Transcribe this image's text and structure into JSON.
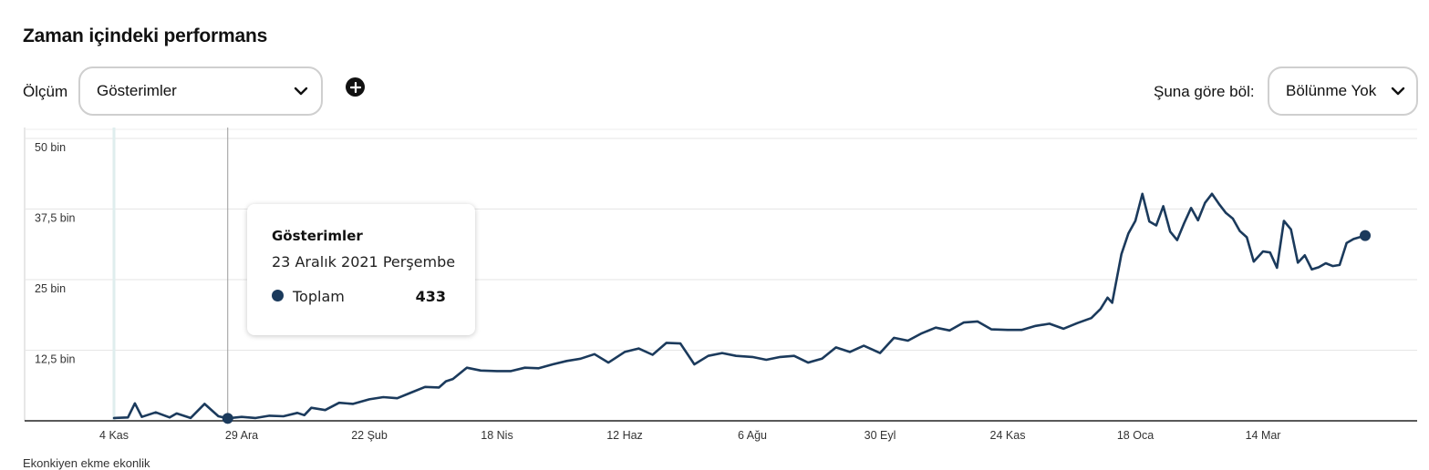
{
  "header": {
    "title": "Zaman içindeki performans"
  },
  "controls": {
    "metric_label": "Ölçüm",
    "metric_value": "Gösterimler",
    "add_icon": "plus-circle-icon",
    "split_label": "Şuna göre böl:",
    "split_value": "Bölünme Yok"
  },
  "tooltip": {
    "title": "Gösterimler",
    "date": "23 Aralık 2021 Perşembe",
    "series_name": "Toplam",
    "value": "433"
  },
  "footnote": "Ekonkiyen ekme ekonlik",
  "colors": {
    "line": "#1b3a5c",
    "grid": "#e6e6e6",
    "axis": "#222222",
    "accent_band": "#dfeeee"
  },
  "chart_data": {
    "type": "line",
    "title": "",
    "xlabel": "",
    "ylabel": "",
    "ylim": [
      0,
      50000
    ],
    "y_ticks": [
      0,
      12500,
      25000,
      37500,
      50000
    ],
    "y_tick_labels": [
      "",
      "12,5 bin",
      "25 bin",
      "37,5 bin",
      "50 bin"
    ],
    "x_range": [
      "2021-11-04",
      "2023-04-27"
    ],
    "x_ticks": [
      "2021-11-04",
      "2021-12-29",
      "2022-02-22",
      "2022-04-18",
      "2022-06-12",
      "2022-08-06",
      "2022-09-30",
      "2022-11-24",
      "2023-01-18",
      "2023-03-14"
    ],
    "x_tick_labels": [
      "4 Kas",
      "29 Ara",
      "22 Şub",
      "18 Nis",
      "12 Haz",
      "6 Ağu",
      "30 Eyl",
      "24 Kas",
      "18 Oca",
      "14 Mar"
    ],
    "grid": true,
    "legend": "none",
    "highlight_point": {
      "x": "2021-12-23",
      "y": 433
    },
    "series": [
      {
        "name": "Toplam",
        "x": [
          "2021-11-04",
          "2021-11-10",
          "2021-11-13",
          "2021-11-16",
          "2021-11-22",
          "2021-11-28",
          "2021-12-01",
          "2021-12-07",
          "2021-12-13",
          "2021-12-19",
          "2021-12-23",
          "2021-12-29",
          "2022-01-04",
          "2022-01-10",
          "2022-01-16",
          "2022-01-22",
          "2022-01-25",
          "2022-01-28",
          "2022-02-03",
          "2022-02-09",
          "2022-02-15",
          "2022-02-22",
          "2022-02-28",
          "2022-03-06",
          "2022-03-12",
          "2022-03-18",
          "2022-03-24",
          "2022-03-27",
          "2022-03-30",
          "2022-04-05",
          "2022-04-11",
          "2022-04-18",
          "2022-04-24",
          "2022-04-30",
          "2022-05-06",
          "2022-05-12",
          "2022-05-18",
          "2022-05-24",
          "2022-05-30",
          "2022-06-05",
          "2022-06-12",
          "2022-06-18",
          "2022-06-24",
          "2022-06-30",
          "2022-07-06",
          "2022-07-12",
          "2022-07-18",
          "2022-07-24",
          "2022-07-30",
          "2022-08-06",
          "2022-08-12",
          "2022-08-18",
          "2022-08-24",
          "2022-08-30",
          "2022-09-05",
          "2022-09-11",
          "2022-09-17",
          "2022-09-23",
          "2022-09-30",
          "2022-10-06",
          "2022-10-12",
          "2022-10-18",
          "2022-10-24",
          "2022-10-30",
          "2022-11-05",
          "2022-11-11",
          "2022-11-17",
          "2022-11-24",
          "2022-11-30",
          "2022-12-06",
          "2022-12-12",
          "2022-12-18",
          "2022-12-24",
          "2022-12-30",
          "2023-01-03",
          "2023-01-06",
          "2023-01-08",
          "2023-01-12",
          "2023-01-15",
          "2023-01-18",
          "2023-01-21",
          "2023-01-24",
          "2023-01-27",
          "2023-01-30",
          "2023-02-02",
          "2023-02-05",
          "2023-02-08",
          "2023-02-11",
          "2023-02-14",
          "2023-02-17",
          "2023-02-20",
          "2023-02-23",
          "2023-02-26",
          "2023-03-01",
          "2023-03-04",
          "2023-03-07",
          "2023-03-10",
          "2023-03-14",
          "2023-03-17",
          "2023-03-20",
          "2023-03-23",
          "2023-03-26",
          "2023-03-29",
          "2023-04-01",
          "2023-04-04",
          "2023-04-07",
          "2023-04-10",
          "2023-04-13",
          "2023-04-16",
          "2023-04-19",
          "2023-04-22",
          "2023-04-27"
        ],
        "values": [
          500,
          600,
          3100,
          700,
          1500,
          600,
          1300,
          500,
          3000,
          800,
          433,
          700,
          500,
          900,
          800,
          1400,
          1000,
          2300,
          1900,
          3200,
          3000,
          3800,
          4200,
          4000,
          5000,
          6000,
          5900,
          7000,
          7400,
          9400,
          8900,
          8800,
          8800,
          9400,
          9300,
          10000,
          10600,
          11000,
          11800,
          10300,
          12200,
          12800,
          11700,
          13800,
          13700,
          10000,
          11500,
          12000,
          11500,
          11300,
          10800,
          11300,
          11500,
          10300,
          11000,
          13000,
          12200,
          13300,
          12000,
          14700,
          14200,
          15500,
          16500,
          16000,
          17400,
          17600,
          16200,
          16100,
          16100,
          16800,
          17200,
          16300,
          17300,
          18200,
          19800,
          21800,
          20900,
          29500,
          33200,
          35400,
          40200,
          35300,
          34600,
          38000,
          33500,
          32000,
          35000,
          37700,
          35500,
          38600,
          40200,
          38400,
          36800,
          35800,
          33600,
          32500,
          28200,
          30000,
          29800,
          27100,
          35400,
          33900,
          28000,
          29300,
          26800,
          27200,
          27900,
          27400,
          27600,
          31500,
          32200,
          32800
        ]
      }
    ]
  }
}
